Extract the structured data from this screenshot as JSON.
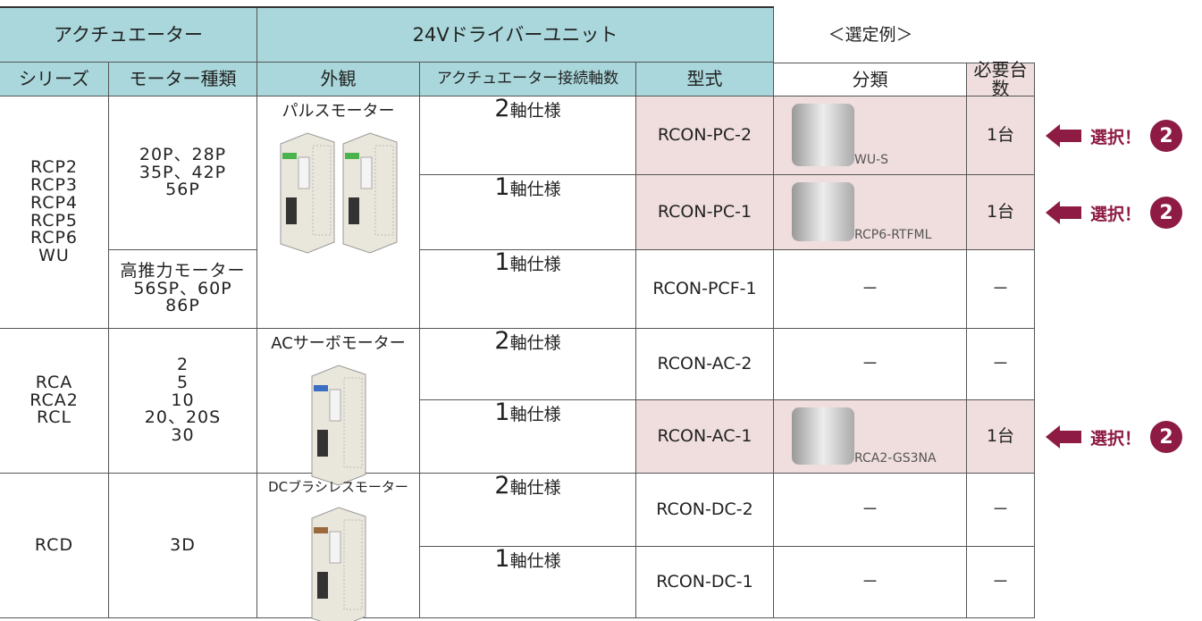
{
  "header": {
    "group_titles": [
      "アクチュエーター",
      "24Vドライバーユニット",
      "＜選定例＞"
    ],
    "columns": [
      "シリーズ",
      "モーター種類",
      "外観",
      "アクチュエーター接続軸数",
      "型式",
      "分類",
      "必要台数"
    ]
  },
  "series_cells": [
    [
      "RCP2",
      "RCP3",
      "RCP4",
      "RCP5",
      "RCP6",
      "WU"
    ],
    [
      "RCA",
      "RCA2",
      "RCL"
    ],
    [
      "RCD"
    ]
  ],
  "motor_cells": [
    [
      "20P、28P",
      "35P、42P",
      "56P"
    ],
    [
      "高推力モーター",
      "56SP、60P",
      "86P"
    ],
    [
      "2",
      "5",
      "10",
      "20、20S",
      "30"
    ],
    [
      "3D"
    ]
  ],
  "appearance_labels": [
    "パルスモーター",
    "ACサーボモーター",
    "DCブラシレスモーター"
  ],
  "rows": [
    {
      "axes_number": "2",
      "axes_unit": "軸仕様",
      "model": "RCON-PC-2",
      "category": "WU-S",
      "count": "1台"
    },
    {
      "axes_number": "1",
      "axes_unit": "軸仕様",
      "model": "RCON-PC-1",
      "category": "RCP6-RTFML",
      "count": "1台"
    },
    {
      "axes_number": "1",
      "axes_unit": "軸仕様",
      "model": "RCON-PCF-1",
      "category": "－",
      "count": "－"
    },
    {
      "axes_number": "2",
      "axes_unit": "軸仕様",
      "model": "RCON-AC-2",
      "category": "－",
      "count": "－"
    },
    {
      "axes_number": "1",
      "axes_unit": "軸仕様",
      "model": "RCON-AC-1",
      "category": "RCA2-GS3NA",
      "count": "1台"
    },
    {
      "axes_number": "2",
      "axes_unit": "軸仕様",
      "model": "RCON-DC-2",
      "category": "－",
      "count": "－"
    },
    {
      "axes_number": "1",
      "axes_unit": "軸仕様",
      "model": "RCON-DC-1",
      "category": "－",
      "count": "－"
    }
  ],
  "callouts": [
    {
      "text": "選択！",
      "number": "2"
    },
    {
      "text": "選択！",
      "number": "2"
    },
    {
      "text": "選択！",
      "number": "2"
    }
  ]
}
